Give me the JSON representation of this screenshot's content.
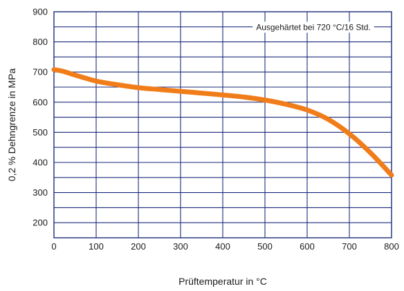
{
  "chart_data": {
    "type": "line",
    "title": "",
    "xlabel": "Prüftemperatur in °C",
    "ylabel": "0,2 % Dehngrenze in MPa",
    "xlim": [
      0,
      800
    ],
    "ylim": [
      150,
      900
    ],
    "xticks": [
      0,
      100,
      200,
      300,
      400,
      500,
      600,
      700,
      800
    ],
    "yticks": [
      200,
      300,
      400,
      500,
      600,
      700,
      800,
      900
    ],
    "grid": true,
    "annotation": "Ausgehärtet bei 720 °C/16 Std.",
    "series": [
      {
        "color": "#f07d1a",
        "x": [
          0,
          20,
          50,
          100,
          150,
          200,
          250,
          300,
          350,
          400,
          450,
          500,
          550,
          600,
          650,
          700,
          750,
          800
        ],
        "y": [
          708,
          703,
          690,
          670,
          658,
          648,
          642,
          636,
          630,
          624,
          617,
          607,
          593,
          574,
          543,
          495,
          432,
          358
        ]
      }
    ]
  },
  "colors": {
    "grid": "#1b2a7a",
    "frame": "#1b2a7a"
  }
}
